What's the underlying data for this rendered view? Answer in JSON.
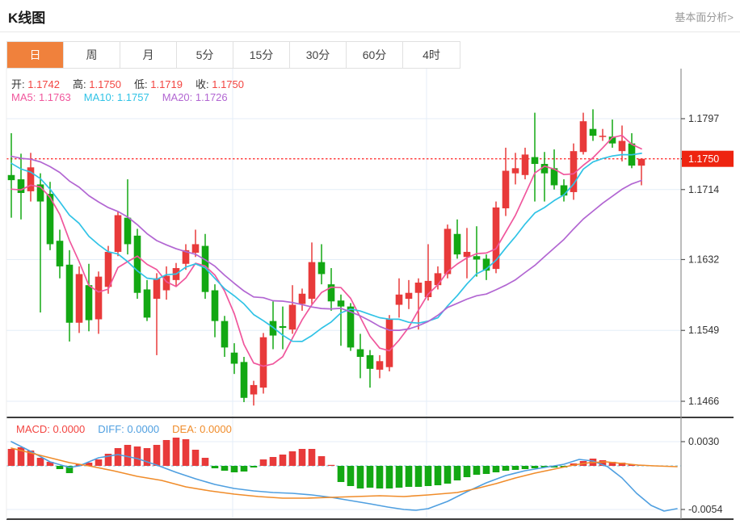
{
  "header": {
    "title": "K线图",
    "link_label": "基本面分析>"
  },
  "tabs": {
    "items": [
      "日",
      "周",
      "月",
      "5分",
      "15分",
      "30分",
      "60分",
      "4时"
    ],
    "active_index": 0
  },
  "ohlc_legend": [
    {
      "label": "开:",
      "value": "1.1742"
    },
    {
      "label": "高:",
      "value": "1.1750"
    },
    {
      "label": "低:",
      "value": "1.1719"
    },
    {
      "label": "收:",
      "value": "1.1750"
    }
  ],
  "ma_legend": [
    {
      "label": "MA5:",
      "value": "1.1763",
      "color": "#f0569c"
    },
    {
      "label": "MA10:",
      "value": "1.1757",
      "color": "#30c3e6"
    },
    {
      "label": "MA20:",
      "value": "1.1726",
      "color": "#b266d2"
    }
  ],
  "macd_legend": [
    {
      "label": "MACD:",
      "value": "0.0000",
      "color": "#f34541"
    },
    {
      "label": "DIFF:",
      "value": "0.0000",
      "color": "#4f9fe0"
    },
    {
      "label": "DEA:",
      "value": "0.0000",
      "color": "#f08c2a"
    }
  ],
  "price_axis": {
    "ticks": [
      "1.1797",
      "1.1714",
      "1.1632",
      "1.1549",
      "1.1466"
    ],
    "current": "1.1750"
  },
  "macd_axis": {
    "ticks": [
      "0.0030",
      "-0.0054"
    ]
  },
  "colors": {
    "up": "#e83a3a",
    "down": "#13a813",
    "tab_active_bg": "#f0813c",
    "value_red": "#f34541",
    "badge_bg": "#ee2410",
    "grid": "#e4eef7",
    "zero_dash": "#8fd0e8",
    "price_dotted": "#ff3434",
    "axis_line": "#909090",
    "pane_border": "#3c3c3c",
    "axis_text": "#333333",
    "diff_line": "#4f9fe0",
    "dea_line": "#f08c2a"
  },
  "chart_data": {
    "type": "candlestick_with_macd",
    "title": "K线图",
    "price_axis_ticks": [
      1.1797,
      1.1714,
      1.1632,
      1.1549,
      1.1466
    ],
    "current_price": 1.175,
    "ma_periods": [
      5,
      10,
      20
    ],
    "ma_colors": [
      "#f0569c",
      "#30c3e6",
      "#b266d2"
    ],
    "ma_seed_closes": [
      1.1758,
      1.176,
      1.1762,
      1.1762,
      1.1761,
      1.176,
      1.1759,
      1.1759,
      1.1758,
      1.1773,
      1.1776,
      1.1777,
      1.1776,
      1.1774,
      1.1772,
      1.1714,
      1.1712,
      1.1711,
      1.171
    ],
    "candles": [
      [
        1.1731,
        1.178,
        1.1681,
        1.1725
      ],
      [
        1.1726,
        1.1756,
        1.1679,
        1.171
      ],
      [
        1.1712,
        1.1757,
        1.17,
        1.174
      ],
      [
        1.172,
        1.1733,
        1.157,
        1.17
      ],
      [
        1.1709,
        1.1723,
        1.1643,
        1.165
      ],
      [
        1.1654,
        1.1667,
        1.161,
        1.1624
      ],
      [
        1.1626,
        1.1643,
        1.1536,
        1.1558
      ],
      [
        1.1558,
        1.1624,
        1.1546,
        1.1615
      ],
      [
        1.1602,
        1.1627,
        1.1548,
        1.1561
      ],
      [
        1.1562,
        1.1618,
        1.1545,
        1.1612
      ],
      [
        1.16,
        1.1648,
        1.1592,
        1.1641
      ],
      [
        1.1641,
        1.1688,
        1.1636,
        1.1684
      ],
      [
        1.1681,
        1.1726,
        1.1638,
        1.165
      ],
      [
        1.166,
        1.1668,
        1.1586,
        1.1593
      ],
      [
        1.1597,
        1.1608,
        1.156,
        1.1564
      ],
      [
        1.1586,
        1.1616,
        1.152,
        1.161
      ],
      [
        1.1596,
        1.1624,
        1.1585,
        1.1613
      ],
      [
        1.1608,
        1.1628,
        1.16,
        1.1622
      ],
      [
        1.1627,
        1.165,
        1.162,
        1.1643
      ],
      [
        1.164,
        1.1667,
        1.1635,
        1.165
      ],
      [
        1.1648,
        1.1662,
        1.1586,
        1.1594
      ],
      [
        1.1596,
        1.1603,
        1.1541,
        1.156
      ],
      [
        1.156,
        1.1566,
        1.1518,
        1.1529
      ],
      [
        1.1523,
        1.1534,
        1.1498,
        1.151
      ],
      [
        1.1512,
        1.1518,
        1.1465,
        1.147
      ],
      [
        1.1474,
        1.149,
        1.1461,
        1.1485
      ],
      [
        1.1482,
        1.1546,
        1.1475,
        1.1541
      ],
      [
        1.156,
        1.1583,
        1.1527,
        1.1543
      ],
      [
        1.1554,
        1.1577,
        1.1527,
        1.1552
      ],
      [
        1.155,
        1.1602,
        1.1545,
        1.1579
      ],
      [
        1.158,
        1.1598,
        1.1572,
        1.1592
      ],
      [
        1.1586,
        1.1652,
        1.158,
        1.1629
      ],
      [
        1.1629,
        1.165,
        1.1603,
        1.1615
      ],
      [
        1.1603,
        1.1622,
        1.1572,
        1.1583
      ],
      [
        1.1584,
        1.1591,
        1.1531,
        1.1577
      ],
      [
        1.1577,
        1.1581,
        1.1525,
        1.1529
      ],
      [
        1.1527,
        1.1545,
        1.1493,
        1.1518
      ],
      [
        1.152,
        1.1526,
        1.1482,
        1.1504
      ],
      [
        1.1503,
        1.152,
        1.1493,
        1.1513
      ],
      [
        1.1506,
        1.1567,
        1.1501,
        1.1562
      ],
      [
        1.1579,
        1.161,
        1.1564,
        1.1591
      ],
      [
        1.1586,
        1.1608,
        1.1574,
        1.1593
      ],
      [
        1.1593,
        1.161,
        1.155,
        1.1605
      ],
      [
        1.1588,
        1.165,
        1.1584,
        1.1607
      ],
      [
        1.1602,
        1.1624,
        1.1597,
        1.1616
      ],
      [
        1.1615,
        1.1673,
        1.161,
        1.1668
      ],
      [
        1.1662,
        1.1679,
        1.1633,
        1.1638
      ],
      [
        1.1635,
        1.1669,
        1.161,
        1.1641
      ],
      [
        1.1636,
        1.1671,
        1.1612,
        1.1632
      ],
      [
        1.1633,
        1.1638,
        1.1608,
        1.1619
      ],
      [
        1.1621,
        1.17,
        1.1616,
        1.1693
      ],
      [
        1.1692,
        1.1763,
        1.1683,
        1.1736
      ],
      [
        1.1733,
        1.1757,
        1.172,
        1.1739
      ],
      [
        1.1731,
        1.1763,
        1.1726,
        1.1755
      ],
      [
        1.1752,
        1.1804,
        1.17,
        1.1744
      ],
      [
        1.1744,
        1.1758,
        1.17,
        1.1733
      ],
      [
        1.1739,
        1.1761,
        1.1714,
        1.1719
      ],
      [
        1.1719,
        1.1726,
        1.17,
        1.1707
      ],
      [
        1.1711,
        1.1768,
        1.1702,
        1.1759
      ],
      [
        1.1758,
        1.1804,
        1.1755,
        1.1794
      ],
      [
        1.1785,
        1.1808,
        1.1771,
        1.1777
      ],
      [
        1.1777,
        1.1785,
        1.1771,
        1.1777
      ],
      [
        1.1776,
        1.1796,
        1.1763,
        1.1768
      ],
      [
        1.1759,
        1.1789,
        1.1747,
        1.1771
      ],
      [
        1.1768,
        1.178,
        1.1739,
        1.1742
      ],
      [
        1.1742,
        1.175,
        1.1719,
        1.175
      ]
    ],
    "macd_axis_ticks": [
      0.003,
      -0.0054
    ],
    "macd_histogram": [
      0.0021,
      0.0023,
      0.0019,
      0.001,
      0.0005,
      -0.0004,
      -0.0009,
      0.0002,
      0.0004,
      0.0008,
      0.0015,
      0.0022,
      0.0026,
      0.0024,
      0.0022,
      0.0026,
      0.0032,
      0.0035,
      0.0033,
      0.002,
      0.001,
      -0.0003,
      -0.0006,
      -0.0008,
      -0.0007,
      -0.0002,
      0.0008,
      0.0011,
      0.0014,
      0.0018,
      0.0021,
      0.0021,
      0.0012,
      0.0001,
      -0.002,
      -0.0025,
      -0.0028,
      -0.0027,
      -0.0028,
      -0.0028,
      -0.0027,
      -0.0026,
      -0.0026,
      -0.0025,
      -0.0024,
      -0.0022,
      -0.0018,
      -0.0014,
      -0.0011,
      -0.001,
      -0.0008,
      -0.0006,
      -0.0005,
      -0.0004,
      -0.0003,
      -0.0002,
      -0.0002,
      -0.0002,
      0.0003,
      0.0006,
      0.0009,
      0.0007,
      0.0005,
      0.0004,
      0.0002,
      0.0001
    ],
    "diff_points": [
      [
        14,
        0.003
      ],
      [
        38,
        0.0018
      ],
      [
        62,
        0.0005
      ],
      [
        86,
        -0.0002
      ],
      [
        98,
        0.0
      ],
      [
        122,
        0.001
      ],
      [
        146,
        0.0014
      ],
      [
        170,
        0.0009
      ],
      [
        194,
        0.0001
      ],
      [
        218,
        -0.0008
      ],
      [
        242,
        -0.0016
      ],
      [
        266,
        -0.0023
      ],
      [
        290,
        -0.0028
      ],
      [
        314,
        -0.0031
      ],
      [
        338,
        -0.0033
      ],
      [
        362,
        -0.0034
      ],
      [
        386,
        -0.0036
      ],
      [
        410,
        -0.0039
      ],
      [
        434,
        -0.0043
      ],
      [
        458,
        -0.0047
      ],
      [
        480,
        -0.0051
      ],
      [
        500,
        -0.0054
      ],
      [
        515,
        -0.0055
      ],
      [
        530,
        -0.0053
      ],
      [
        554,
        -0.0044
      ],
      [
        578,
        -0.0032
      ],
      [
        602,
        -0.0021
      ],
      [
        626,
        -0.0012
      ],
      [
        650,
        -0.0006
      ],
      [
        674,
        -0.0002
      ],
      [
        698,
        0.0002
      ],
      [
        717,
        0.0008
      ],
      [
        734,
        0.0006
      ],
      [
        752,
        -0.0001
      ],
      [
        770,
        -0.0015
      ],
      [
        788,
        -0.0034
      ],
      [
        806,
        -0.0049
      ],
      [
        822,
        -0.0056
      ],
      [
        838,
        -0.0053
      ]
    ],
    "dea_points": [
      [
        14,
        0.0022
      ],
      [
        50,
        0.0013
      ],
      [
        86,
        0.0004
      ],
      [
        110,
        0.0
      ],
      [
        140,
        -0.0006
      ],
      [
        170,
        -0.0013
      ],
      [
        200,
        -0.0018
      ],
      [
        230,
        -0.0026
      ],
      [
        260,
        -0.0031
      ],
      [
        290,
        -0.0035
      ],
      [
        320,
        -0.0038
      ],
      [
        350,
        -0.004
      ],
      [
        380,
        -0.004
      ],
      [
        410,
        -0.0039
      ],
      [
        440,
        -0.0038
      ],
      [
        470,
        -0.0037
      ],
      [
        500,
        -0.0038
      ],
      [
        530,
        -0.0036
      ],
      [
        566,
        -0.0033
      ],
      [
        590,
        -0.0028
      ],
      [
        614,
        -0.0022
      ],
      [
        638,
        -0.0015
      ],
      [
        662,
        -0.0009
      ],
      [
        686,
        -0.0004
      ],
      [
        710,
        0.0001
      ],
      [
        730,
        0.0004
      ],
      [
        750,
        0.0005
      ],
      [
        770,
        0.0003
      ],
      [
        790,
        0.0001
      ],
      [
        810,
        0.0
      ],
      [
        838,
        -0.0001
      ]
    ]
  }
}
